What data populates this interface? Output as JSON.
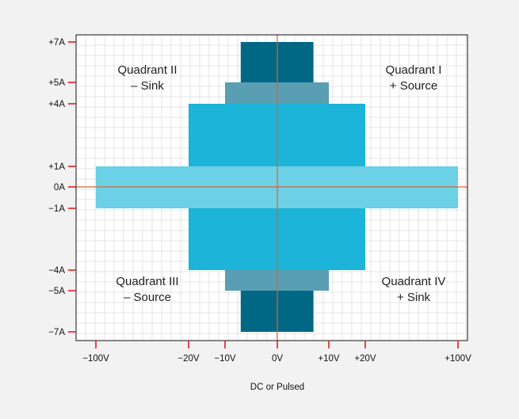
{
  "chart_data": {
    "type": "area",
    "title": "",
    "xlabel": "DC or Pulsed",
    "ylabel": "",
    "x_ticks": [
      {
        "value": -100,
        "label": "−100V"
      },
      {
        "value": -20,
        "label": "−20V"
      },
      {
        "value": -10,
        "label": "−10V"
      },
      {
        "value": 0,
        "label": "0V"
      },
      {
        "value": 10,
        "label": "+10V"
      },
      {
        "value": 20,
        "label": "+20V"
      },
      {
        "value": 100,
        "label": "+100V"
      }
    ],
    "y_ticks": [
      {
        "value": 7,
        "label": "+7A"
      },
      {
        "value": 5,
        "label": "+5A"
      },
      {
        "value": 4,
        "label": "+4A"
      },
      {
        "value": 1,
        "label": "+1A"
      },
      {
        "value": 0,
        "label": "0A"
      },
      {
        "value": -1,
        "label": "−1A"
      },
      {
        "value": -4,
        "label": "−4A"
      },
      {
        "value": -5,
        "label": "−5A"
      },
      {
        "value": -7,
        "label": "−7A"
      }
    ],
    "regions": [
      {
        "v_min": -100,
        "v_max": 100,
        "i_min": -1,
        "i_max": 1,
        "color": "#6cd0e6"
      },
      {
        "v_min": -20,
        "v_max": 20,
        "i_min": 1,
        "i_max": 4,
        "color": "#1cb4d8"
      },
      {
        "v_min": -20,
        "v_max": 20,
        "i_min": -4,
        "i_max": -1,
        "color": "#1cb4d8"
      },
      {
        "v_min": -10,
        "v_max": 10,
        "i_min": 4,
        "i_max": 5,
        "color": "#5a9eb3"
      },
      {
        "v_min": -10,
        "v_max": 10,
        "i_min": -5,
        "i_max": -4,
        "color": "#5a9eb3"
      },
      {
        "v_min": -7,
        "v_max": 7,
        "i_min": 5,
        "i_max": 7,
        "color": "#006784"
      },
      {
        "v_min": -7,
        "v_max": 7,
        "i_min": -7,
        "i_max": -5,
        "color": "#006784"
      }
    ],
    "quadrants": [
      {
        "name": "quadrant-ii",
        "lines": [
          "Quadrant II",
          "– Sink"
        ]
      },
      {
        "name": "quadrant-i",
        "lines": [
          "Quadrant I",
          "+ Source"
        ]
      },
      {
        "name": "quadrant-iii",
        "lines": [
          "Quadrant III",
          "– Source"
        ]
      },
      {
        "name": "quadrant-iv",
        "lines": [
          "Quadrant IV",
          "+ Sink"
        ]
      }
    ],
    "grid": true,
    "colors": {
      "axis_lines": "#e2622b",
      "tick_marks": "#e31b23",
      "grid": "#dddddd",
      "frame": "#111111",
      "plot_bg": "#ffffff"
    }
  }
}
